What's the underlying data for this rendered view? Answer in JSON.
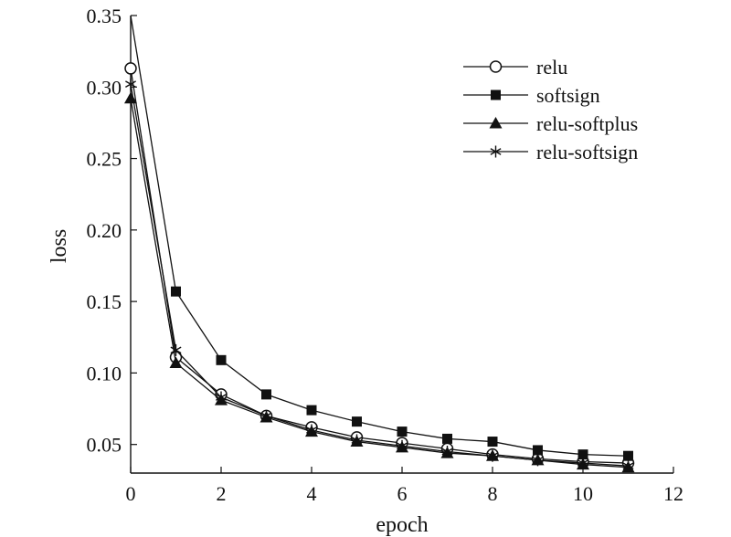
{
  "chart_data": {
    "type": "line",
    "title": "",
    "xlabel": "epoch",
    "ylabel": "loss",
    "xlim": [
      0,
      12
    ],
    "ylim": [
      0.03,
      0.35
    ],
    "xticks": [
      "0",
      "2",
      "4",
      "6",
      "8",
      "10",
      "12"
    ],
    "yticks": [
      "0.05",
      "0.10",
      "0.15",
      "0.20",
      "0.25",
      "0.30",
      "0.35"
    ],
    "grid": false,
    "legend_position": "top-right",
    "x": [
      0,
      1,
      2,
      3,
      4,
      5,
      6,
      7,
      8,
      9,
      10,
      11
    ],
    "series": [
      {
        "name": "relu",
        "marker": "open-circle",
        "values": [
          0.313,
          0.111,
          0.085,
          0.07,
          0.062,
          0.055,
          0.051,
          0.047,
          0.043,
          0.04,
          0.038,
          0.037
        ]
      },
      {
        "name": "softsign",
        "marker": "filled-square",
        "values": [
          0.35,
          0.157,
          0.109,
          0.085,
          0.074,
          0.066,
          0.059,
          0.054,
          0.052,
          0.046,
          0.043,
          0.042
        ]
      },
      {
        "name": "relu-softplus",
        "marker": "filled-triangle",
        "values": [
          0.292,
          0.107,
          0.081,
          0.069,
          0.059,
          0.052,
          0.048,
          0.044,
          0.042,
          0.039,
          0.036,
          0.034
        ]
      },
      {
        "name": "relu-softsign",
        "marker": "asterisk",
        "values": [
          0.302,
          0.116,
          0.083,
          0.07,
          0.06,
          0.053,
          0.049,
          0.045,
          0.042,
          0.039,
          0.037,
          0.035
        ]
      }
    ]
  }
}
